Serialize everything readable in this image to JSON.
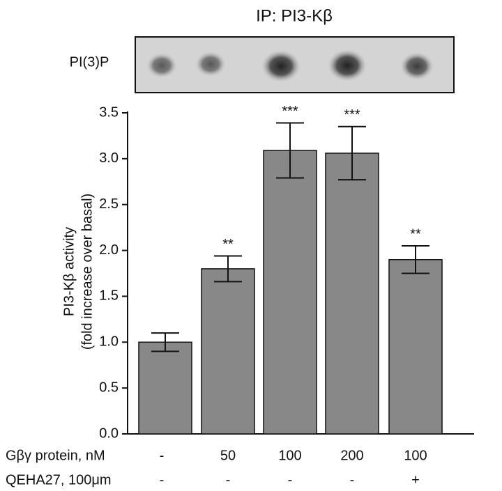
{
  "chart_data": {
    "type": "bar",
    "title": "IP: PI3-Kβ",
    "blot_label": "PI(3)P",
    "ylabel": [
      "PI3-Kβ activity",
      "(fold increase over basal)"
    ],
    "values": [
      1.0,
      1.8,
      3.09,
      3.06,
      1.9
    ],
    "errors": [
      0.1,
      0.14,
      0.3,
      0.29,
      0.15
    ],
    "annotations": [
      null,
      "**",
      "***",
      "***",
      "**"
    ],
    "color": "#888888",
    "ylim": [
      0,
      3.5
    ],
    "yticks": [
      {
        "value": 0,
        "label": "0.0"
      },
      0.5,
      {
        "value": 1,
        "label": "1.0"
      },
      1.5,
      {
        "value": 2,
        "label": "2.0"
      },
      2.5,
      {
        "value": 3,
        "label": "3.0"
      },
      3.5
    ],
    "rows": [
      {
        "label": "Gβγ protein, nM",
        "values": [
          "-",
          "50",
          "100",
          "200",
          "100"
        ]
      },
      {
        "label": "QEHA27, 100μm",
        "values": [
          "-",
          "-",
          "-",
          "-",
          "+"
        ]
      }
    ]
  }
}
